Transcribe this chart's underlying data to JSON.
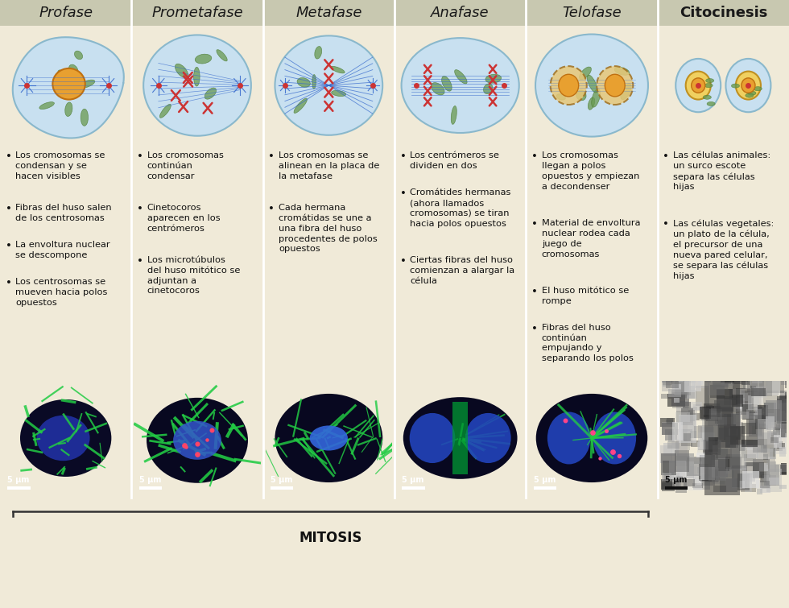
{
  "columns": [
    "Profase",
    "Prometafase",
    "Metafase",
    "Anafase",
    "Telofase",
    "Citocinesis"
  ],
  "header_bg": "#c8c8b0",
  "content_bg": "#f0ead8",
  "header_fontsize": 13,
  "body_fontsize": 8.2,
  "title_color": "#1a1a1a",
  "body_color": "#1a1a1a",
  "mitosis_label": "MITOSIS",
  "bullet_texts": [
    [
      "Los cromosomas se\ncondensan y se\nhacen visibles",
      "Fibras del huso salen\nde los centrosomas",
      "La envoltura nuclear\nse descompone",
      "Los centrosomas se\nmueven hacia polos\nopuestos"
    ],
    [
      "Los cromosomas\ncontinúan\ncondensar",
      "Cinetocoros\naparecen en los\ncentrómeros",
      "Los microtúbulos\ndel huso mitótico se\nadjuntan a\ncinetocoros"
    ],
    [
      "Los cromosomas se\nalinean en la placa de\nla metafase",
      "Cada hermana\ncromátidas se une a\nuna fibra del huso\nprocedentes de polos\nopuestos"
    ],
    [
      "Los centrómeros se\ndividen en dos",
      "Cromátides hermanas\n(ahora llamados\ncromosomas) se tiran\nhacia polos opuestos",
      "Ciertas fibras del huso\ncomienzan a alargar la\ncélula"
    ],
    [
      "Los cromosomas\nllegan a polos\nopuestos y empiezan\na decondenser",
      "Material de envoltura\nnuclear rodea cada\njuego de\ncromosomas",
      "El huso mitótico se\nrompe",
      "Fibras del huso\ncontinúan\nempujando y\nseparando los polos"
    ],
    [
      "Las células animales:\nun surco escote\nsepara las células\nhijas",
      "Las células vegetales:\nun plato de la célula,\nel precursor de una\nnueva pared celular,\nse separa las células\nhijas"
    ]
  ],
  "cell_bg": "#c8e0f0",
  "nucleus_color": "#e8a030",
  "spindle_color": "#3366cc",
  "chromosome_color": "#cc3333",
  "organelle_color": "#6a9a50"
}
